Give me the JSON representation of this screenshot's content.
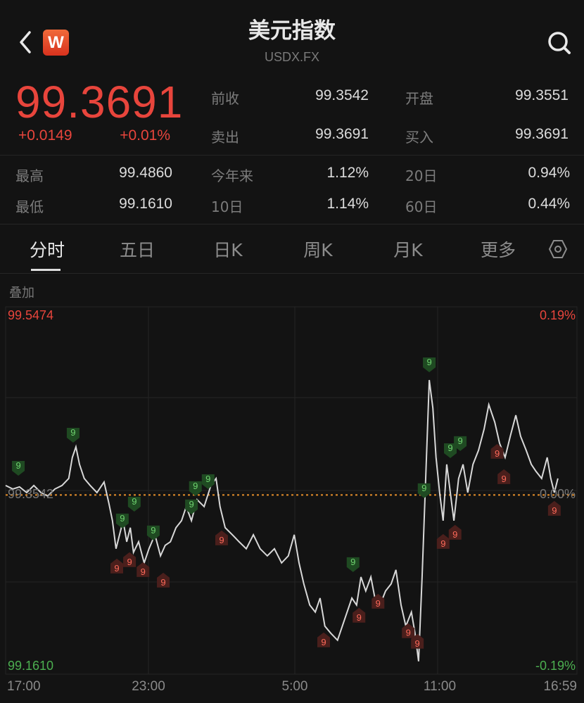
{
  "header": {
    "title": "美元指数",
    "subtitle": "USDX.FX",
    "logo_text": "W",
    "back_icon": "chevron-left-icon",
    "search_icon": "search-icon"
  },
  "quote": {
    "price": "99.3691",
    "change": "+0.0149",
    "change_pct": "+0.01%",
    "color_up": "#e8453c",
    "color_down": "#4caf50"
  },
  "stats": [
    {
      "label": "前收",
      "value": "99.3542"
    },
    {
      "label": "开盘",
      "value": "99.3551"
    },
    {
      "label": "卖出",
      "value": "99.3691"
    },
    {
      "label": "买入",
      "value": "99.3691"
    },
    {
      "label": "最高",
      "value": "99.4860"
    },
    {
      "label": "今年来",
      "value": "1.12%"
    },
    {
      "label": "20日",
      "value": "0.94%"
    },
    {
      "label": "最低",
      "value": "99.1610"
    },
    {
      "label": "10日",
      "value": "1.14%"
    },
    {
      "label": "60日",
      "value": "0.44%"
    }
  ],
  "tabs": [
    {
      "label": "分时",
      "active": true
    },
    {
      "label": "五日"
    },
    {
      "label": "日K"
    },
    {
      "label": "周K"
    },
    {
      "label": "月K"
    },
    {
      "label": "更多"
    }
  ],
  "settings_icon": "hexagon-settings-icon",
  "overlay_label": "叠加",
  "chart_data": {
    "type": "line",
    "ylim": [
      99.161,
      99.5474
    ],
    "y_labels": {
      "top": "99.5474",
      "bottom": "99.1610",
      "mid": "99.3542",
      "top_pct": "0.19%",
      "bottom_pct": "-0.19%",
      "mid_pct": "0.00%"
    },
    "reference_line": 99.3542,
    "x_ticks": [
      "17:00",
      "23:00",
      "5:00",
      "11:00",
      "16:59"
    ],
    "grid": true,
    "line_color": "#d8d8d8",
    "ref_color": "#e8902a",
    "points": [
      [
        "17:00",
        99.3651
      ],
      [
        "17:18",
        99.3611
      ],
      [
        "17:35",
        99.3635
      ],
      [
        "17:53",
        99.357
      ],
      [
        "18:11",
        99.3651
      ],
      [
        "18:29",
        99.357
      ],
      [
        "18:46",
        99.353
      ],
      [
        "19:04",
        99.3611
      ],
      [
        "19:22",
        99.3651
      ],
      [
        "19:39",
        99.3732
      ],
      [
        "19:48",
        99.3973
      ],
      [
        "19:57",
        99.4094
      ],
      [
        "20:06",
        99.3893
      ],
      [
        "20:18",
        99.3732
      ],
      [
        "20:33",
        99.3651
      ],
      [
        "20:50",
        99.357
      ],
      [
        "21:08",
        99.3691
      ],
      [
        "21:20",
        99.3449
      ],
      [
        "21:29",
        99.3248
      ],
      [
        "21:38",
        99.2926
      ],
      [
        "21:47",
        99.3087
      ],
      [
        "21:56",
        99.3248
      ],
      [
        "22:05",
        99.3006
      ],
      [
        "22:14",
        99.3167
      ],
      [
        "22:22",
        99.2885
      ],
      [
        "22:35",
        99.3006
      ],
      [
        "22:49",
        99.2764
      ],
      [
        "23:01",
        99.2926
      ],
      [
        "23:16",
        99.3087
      ],
      [
        "23:30",
        99.2845
      ],
      [
        "23:42",
        99.2966
      ],
      [
        "23:55",
        99.3006
      ],
      [
        "00:09",
        99.3167
      ],
      [
        "00:23",
        99.3248
      ],
      [
        "00:35",
        99.3409
      ],
      [
        "00:48",
        99.3248
      ],
      [
        "01:02",
        99.349
      ],
      [
        "01:20",
        99.3409
      ],
      [
        "01:37",
        99.3651
      ],
      [
        "01:50",
        99.3732
      ],
      [
        "02:00",
        99.3409
      ],
      [
        "02:13",
        99.3167
      ],
      [
        "02:31",
        99.3087
      ],
      [
        "02:48",
        99.3006
      ],
      [
        "03:06",
        99.2926
      ],
      [
        "03:24",
        99.3087
      ],
      [
        "03:41",
        99.2926
      ],
      [
        "03:59",
        99.2845
      ],
      [
        "04:17",
        99.2926
      ],
      [
        "04:35",
        99.2764
      ],
      [
        "04:52",
        99.2845
      ],
      [
        "05:07",
        99.3087
      ],
      [
        "05:19",
        99.2764
      ],
      [
        "05:31",
        99.2523
      ],
      [
        "05:46",
        99.2281
      ],
      [
        "06:00",
        99.22
      ],
      [
        "06:12",
        99.2361
      ],
      [
        "06:24",
        99.2039
      ],
      [
        "06:39",
        99.1958
      ],
      [
        "06:56",
        99.1878
      ],
      [
        "07:14",
        99.212
      ],
      [
        "07:32",
        99.2361
      ],
      [
        "07:44",
        99.2281
      ],
      [
        "07:55",
        99.2603
      ],
      [
        "08:07",
        99.2442
      ],
      [
        "08:20",
        99.2603
      ],
      [
        "08:30",
        99.2361
      ],
      [
        "08:43",
        99.2281
      ],
      [
        "08:57",
        99.2442
      ],
      [
        "09:11",
        99.2523
      ],
      [
        "09:23",
        99.2684
      ],
      [
        "09:36",
        99.2281
      ],
      [
        "09:48",
        99.2039
      ],
      [
        "10:02",
        99.22
      ],
      [
        "10:11",
        99.1958
      ],
      [
        "10:20",
        99.1636
      ],
      [
        "10:29",
        99.2603
      ],
      [
        "10:38",
        99.3732
      ],
      [
        "10:47",
        99.486
      ],
      [
        "10:56",
        99.4538
      ],
      [
        "11:04",
        99.3973
      ],
      [
        "11:13",
        99.357
      ],
      [
        "11:22",
        99.3248
      ],
      [
        "11:31",
        99.3893
      ],
      [
        "11:40",
        99.357
      ],
      [
        "11:49",
        99.3248
      ],
      [
        "12:01",
        99.3732
      ],
      [
        "12:12",
        99.3893
      ],
      [
        "12:24",
        99.357
      ],
      [
        "12:37",
        99.3893
      ],
      [
        "12:51",
        99.4054
      ],
      [
        "13:05",
        99.4296
      ],
      [
        "13:17",
        99.4578
      ],
      [
        "13:32",
        99.4376
      ],
      [
        "13:44",
        99.4135
      ],
      [
        "13:58",
        99.3973
      ],
      [
        "14:11",
        99.4215
      ],
      [
        "14:25",
        99.4457
      ],
      [
        "14:37",
        99.4215
      ],
      [
        "14:51",
        99.4054
      ],
      [
        "15:04",
        99.3893
      ],
      [
        "15:16",
        99.3812
      ],
      [
        "15:30",
        99.3732
      ],
      [
        "15:44",
        99.3973
      ],
      [
        "15:53",
        99.3732
      ],
      [
        "16:02",
        99.357
      ],
      [
        "16:11",
        99.3732
      ]
    ],
    "markers": [
      {
        "time": "17:32",
        "value": 99.3852,
        "type": "green",
        "label": "9"
      },
      {
        "time": "19:50",
        "value": 99.4231,
        "type": "green",
        "label": "9"
      },
      {
        "time": "21:54",
        "value": 99.3248,
        "type": "green",
        "label": "9"
      },
      {
        "time": "22:24",
        "value": 99.3441,
        "type": "green",
        "label": "9"
      },
      {
        "time": "23:12",
        "value": 99.3111,
        "type": "green",
        "label": "9"
      },
      {
        "time": "00:48",
        "value": 99.3409,
        "type": "green",
        "label": "9"
      },
      {
        "time": "00:58",
        "value": 99.3619,
        "type": "green",
        "label": "9"
      },
      {
        "time": "01:30",
        "value": 99.3699,
        "type": "green",
        "label": "9"
      },
      {
        "time": "07:35",
        "value": 99.2748,
        "type": "green",
        "label": "9"
      },
      {
        "time": "10:34",
        "value": 99.3595,
        "type": "green",
        "label": "9"
      },
      {
        "time": "10:47",
        "value": 99.5037,
        "type": "green",
        "label": "9"
      },
      {
        "time": "11:40",
        "value": 99.4054,
        "type": "green",
        "label": "9"
      },
      {
        "time": "12:05",
        "value": 99.4135,
        "type": "green",
        "label": "9"
      },
      {
        "time": "21:40",
        "value": 99.2724,
        "type": "red",
        "label": "9"
      },
      {
        "time": "22:12",
        "value": 99.2797,
        "type": "red",
        "label": "9"
      },
      {
        "time": "22:46",
        "value": 99.2684,
        "type": "red",
        "label": "9"
      },
      {
        "time": "23:37",
        "value": 99.2563,
        "type": "red",
        "label": "9"
      },
      {
        "time": "02:04",
        "value": 99.3046,
        "type": "red",
        "label": "9"
      },
      {
        "time": "06:21",
        "value": 99.1878,
        "type": "red",
        "label": "9"
      },
      {
        "time": "07:50",
        "value": 99.216,
        "type": "red",
        "label": "9"
      },
      {
        "time": "08:38",
        "value": 99.2321,
        "type": "red",
        "label": "9"
      },
      {
        "time": "09:54",
        "value": 99.1983,
        "type": "red",
        "label": "9"
      },
      {
        "time": "10:17",
        "value": 99.1862,
        "type": "red",
        "label": "9"
      },
      {
        "time": "11:22",
        "value": 99.3006,
        "type": "red",
        "label": "9"
      },
      {
        "time": "11:52",
        "value": 99.3111,
        "type": "red",
        "label": "9"
      },
      {
        "time": "13:38",
        "value": 99.4038,
        "type": "red",
        "label": "9"
      },
      {
        "time": "13:55",
        "value": 99.3748,
        "type": "red",
        "label": "9"
      },
      {
        "time": "16:02",
        "value": 99.3385,
        "type": "red",
        "label": "9"
      }
    ]
  }
}
